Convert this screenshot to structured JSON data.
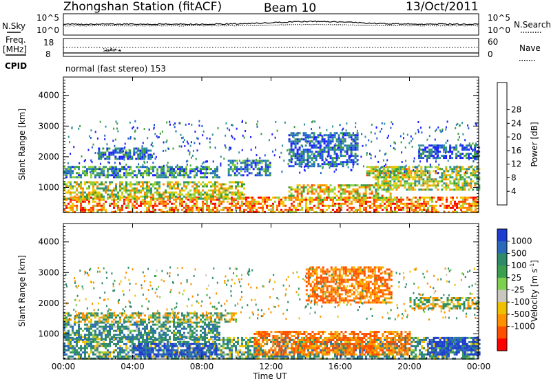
{
  "header": {
    "station": "Zhongshan Station (fitACF)",
    "beam": "Beam 10",
    "date": "13/Oct/2011"
  },
  "top_panels": {
    "nsky_label": "N.Sky",
    "nsearch_label": "N.Search",
    "freq_label_1": "Freq.",
    "freq_label_2": "[MHz]",
    "nave_label": "Nave",
    "cpid_label": "CPID",
    "cpid_text": "normal (fast stereo) 153",
    "noise_ticks": [
      "10^5",
      "10^0"
    ],
    "freq_ticks": [
      "18",
      "8"
    ],
    "nave_ticks": [
      "60",
      "0"
    ]
  },
  "axes": {
    "xlabel": "Time UT",
    "ylabel": "Slant Range [km]",
    "x_ticks": [
      "00:00",
      "04:00",
      "08:00",
      "12:00",
      "16:00",
      "20:00",
      "00:00"
    ],
    "y_ticks": [
      "1000",
      "2000",
      "3000",
      "4000"
    ]
  },
  "colorbars": {
    "power": {
      "label": "Power [dB]",
      "ticks": [
        "4",
        "8",
        "12",
        "16",
        "20",
        "24",
        "28"
      ],
      "colors": [
        "#1e1eff",
        "#1e5fd0",
        "#2f8f9a",
        "#3a9f3a",
        "#8fd23a",
        "#f0c800",
        "#ff8c00",
        "#ff4000",
        "#ff0000"
      ]
    },
    "velocity": {
      "label": "Velocity [m s",
      "label_sup": "-1",
      "label_end": "]",
      "ticks": [
        "1000",
        "500",
        "100",
        "25",
        "-25",
        "-100",
        "-500",
        "-1000"
      ],
      "colors": [
        "#1e3ccf",
        "#2a6ab8",
        "#2f8a6a",
        "#3aa050",
        "#7fd050",
        "#c8c8c0",
        "#f0c000",
        "#ff9000",
        "#ff5000",
        "#ff0000"
      ]
    }
  },
  "chart_data": [
    {
      "type": "heatmap",
      "name": "power",
      "x_unit": "hours UT",
      "x_range": [
        0,
        24
      ],
      "y_unit": "km",
      "y_range": [
        180,
        4600
      ],
      "z_range_dB": [
        0,
        30
      ],
      "bands": [
        {
          "t0": 0.0,
          "t1": 24.0,
          "r0": 200,
          "r1": 700,
          "z": 22
        },
        {
          "t0": 0.0,
          "t1": 10.5,
          "r0": 600,
          "r1": 1200,
          "z": 16
        },
        {
          "t0": 0.0,
          "t1": 9.0,
          "r0": 1350,
          "r1": 1700,
          "z": 9
        },
        {
          "t0": 2.0,
          "t1": 5.0,
          "r0": 1900,
          "r1": 2300,
          "z": 7
        },
        {
          "t0": 9.5,
          "t1": 12.0,
          "r0": 1400,
          "r1": 1900,
          "z": 8
        },
        {
          "t0": 13.0,
          "t1": 19.0,
          "r0": 600,
          "r1": 1100,
          "z": 18
        },
        {
          "t0": 13.0,
          "t1": 17.0,
          "r0": 1700,
          "r1": 2800,
          "z": 6
        },
        {
          "t0": 17.5,
          "t1": 20.0,
          "r0": 1300,
          "r1": 1700,
          "z": 17
        },
        {
          "t0": 18.0,
          "t1": 24.0,
          "r0": 900,
          "r1": 1700,
          "z": 15
        },
        {
          "t0": 20.5,
          "t1": 24.0,
          "r0": 1950,
          "r1": 2400,
          "z": 6
        }
      ]
    },
    {
      "type": "heatmap",
      "name": "velocity",
      "x_unit": "hours UT",
      "x_range": [
        0,
        24
      ],
      "y_unit": "km",
      "y_range": [
        180,
        4600
      ],
      "z_unit": "m/s",
      "bands": [
        {
          "t0": 0.0,
          "t1": 24.0,
          "r0": 200,
          "r1": 900,
          "z": 150
        },
        {
          "t0": 0.0,
          "t1": 9.0,
          "r0": 800,
          "r1": 1400,
          "z": 200
        },
        {
          "t0": 4.0,
          "t1": 9.0,
          "r0": 250,
          "r1": 700,
          "z": 700
        },
        {
          "t0": 0.0,
          "t1": 10.0,
          "r0": 1400,
          "r1": 1700,
          "z": 0
        },
        {
          "t0": 11.0,
          "t1": 20.0,
          "r0": 300,
          "r1": 1100,
          "z": -300
        },
        {
          "t0": 14.0,
          "t1": 19.0,
          "r0": 2000,
          "r1": 3200,
          "z": -300
        },
        {
          "t0": 20.0,
          "t1": 24.0,
          "r0": 1800,
          "r1": 2200,
          "z": 0
        },
        {
          "t0": 21.0,
          "t1": 24.0,
          "r0": 300,
          "r1": 900,
          "z": 800
        }
      ]
    }
  ]
}
